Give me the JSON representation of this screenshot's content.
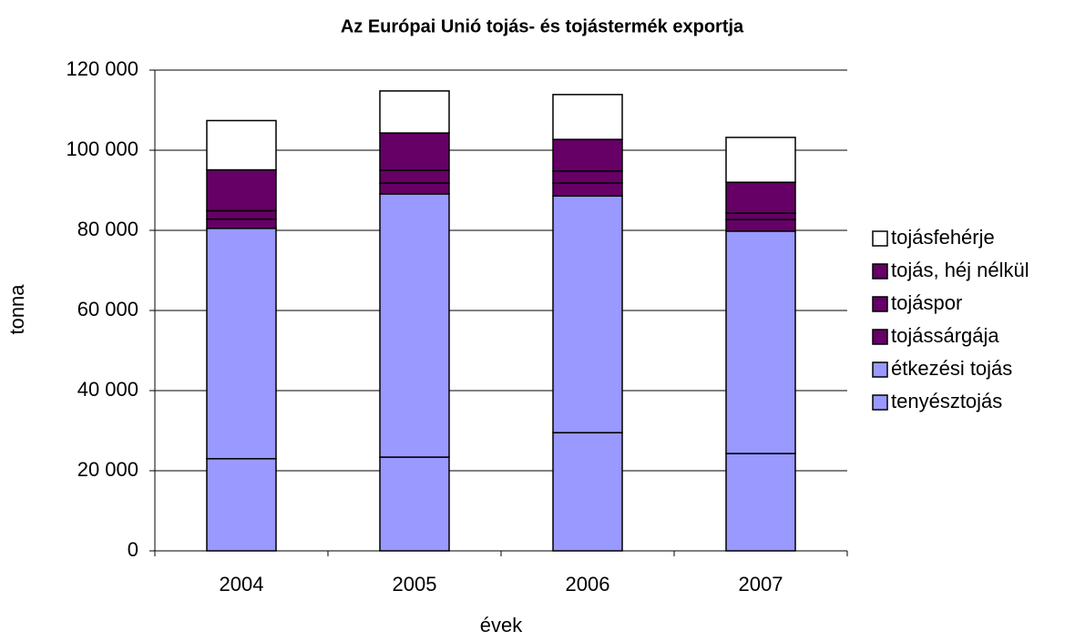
{
  "chart_data": {
    "type": "stacked_bar",
    "title": "Az Európai Unió tojás- és tojástermék exportja",
    "x_label": "évek",
    "y_label": "tonna",
    "categories": [
      "2004",
      "2005",
      "2006",
      "2007"
    ],
    "series": [
      {
        "name": "tenyésztojás",
        "color": "#9999ff",
        "values": [
          23000,
          23400,
          29500,
          24300
        ]
      },
      {
        "name": "étkezési tojás",
        "color": "#9999ff",
        "values": [
          57500,
          65700,
          59100,
          55500
        ]
      },
      {
        "name": "tojássárgája",
        "color": "#660066",
        "values": [
          2300,
          2700,
          3200,
          2900
        ]
      },
      {
        "name": "tojáspor",
        "color": "#660066",
        "values": [
          2100,
          3200,
          3000,
          1600
        ]
      },
      {
        "name": "tojás, héj nélkül",
        "color": "#660066",
        "values": [
          10200,
          9300,
          7900,
          7700
        ]
      },
      {
        "name": "tojásfehérje",
        "color": "#ffffff",
        "values": [
          12300,
          10500,
          11200,
          11200
        ]
      }
    ],
    "ylim": [
      0,
      120000
    ],
    "yticks": [
      0,
      {
        "value": 20000,
        "label": "20 000"
      },
      {
        "value": 40000,
        "label": "40 000"
      },
      {
        "value": 60000,
        "label": "60 000"
      },
      {
        "value": 80000,
        "label": "80 000"
      },
      {
        "value": 100000,
        "label": "100 000"
      },
      {
        "value": 120000,
        "label": "120 000"
      }
    ],
    "grid": true,
    "legend": "right"
  }
}
